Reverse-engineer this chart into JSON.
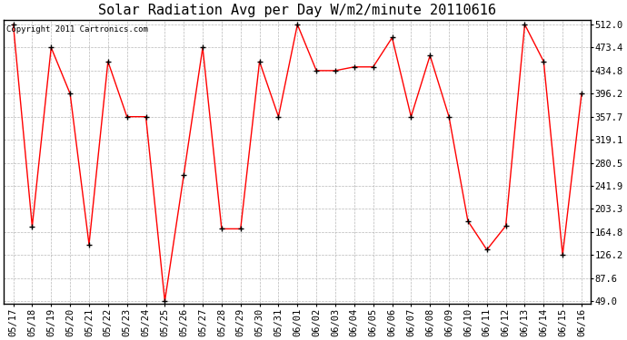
{
  "title": "Solar Radiation Avg per Day W/m2/minute 20110616",
  "copyright_text": "Copyright 2011 Cartronics.com",
  "dates": [
    "05/17",
    "05/18",
    "05/19",
    "05/20",
    "05/21",
    "05/22",
    "05/23",
    "05/24",
    "05/25",
    "05/26",
    "05/27",
    "05/28",
    "05/29",
    "05/30",
    "05/31",
    "06/01",
    "06/02",
    "06/03",
    "06/04",
    "06/05",
    "06/06",
    "06/07",
    "06/08",
    "06/09",
    "06/10",
    "06/11",
    "06/12",
    "06/13",
    "06/14",
    "06/15",
    "06/16"
  ],
  "values": [
    512.0,
    174.0,
    473.4,
    396.2,
    144.0,
    450.0,
    357.7,
    357.7,
    49.0,
    260.0,
    473.4,
    170.0,
    170.0,
    450.0,
    357.7,
    512.0,
    434.8,
    434.8,
    441.0,
    441.0,
    490.0,
    357.7,
    460.0,
    357.7,
    183.0,
    135.0,
    175.0,
    512.0,
    450.0,
    126.2,
    396.2
  ],
  "ylim_min": 49.0,
  "ylim_max": 512.0,
  "yticks": [
    49.0,
    87.6,
    126.2,
    164.8,
    203.3,
    241.9,
    280.5,
    319.1,
    357.7,
    396.2,
    434.8,
    473.4,
    512.0
  ],
  "line_color": "#ff0000",
  "marker": "+",
  "marker_color": "#000000",
  "bg_color": "#ffffff",
  "grid_color": "#b0b0b0",
  "title_fontsize": 11,
  "tick_fontsize": 7.5,
  "copyright_fontsize": 6.5
}
